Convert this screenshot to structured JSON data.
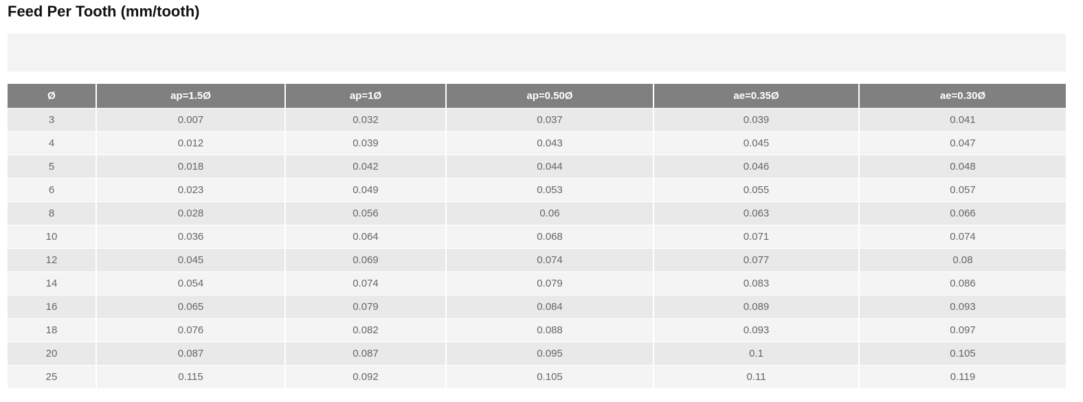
{
  "title": "Feed Per Tooth (mm/tooth)",
  "table": {
    "headers": [
      "Ø",
      "ap=1.5Ø",
      "ap=1Ø",
      "ap=0.50Ø",
      "ae=0.35Ø",
      "ae=0.30Ø"
    ],
    "rows": [
      [
        "3",
        "0.007",
        "0.032",
        "0.037",
        "0.039",
        "0.041"
      ],
      [
        "4",
        "0.012",
        "0.039",
        "0.043",
        "0.045",
        "0.047"
      ],
      [
        "5",
        "0.018",
        "0.042",
        "0.044",
        "0.046",
        "0.048"
      ],
      [
        "6",
        "0.023",
        "0.049",
        "0.053",
        "0.055",
        "0.057"
      ],
      [
        "8",
        "0.028",
        "0.056",
        "0.06",
        "0.063",
        "0.066"
      ],
      [
        "10",
        "0.036",
        "0.064",
        "0.068",
        "0.071",
        "0.074"
      ],
      [
        "12",
        "0.045",
        "0.069",
        "0.074",
        "0.077",
        "0.08"
      ],
      [
        "14",
        "0.054",
        "0.074",
        "0.079",
        "0.083",
        "0.086"
      ],
      [
        "16",
        "0.065",
        "0.079",
        "0.084",
        "0.089",
        "0.093"
      ],
      [
        "18",
        "0.076",
        "0.082",
        "0.088",
        "0.093",
        "0.097"
      ],
      [
        "20",
        "0.087",
        "0.087",
        "0.095",
        "0.1",
        "0.105"
      ],
      [
        "25",
        "0.115",
        "0.092",
        "0.105",
        "0.11",
        "0.119"
      ]
    ]
  },
  "colors": {
    "header_bg": "#808080",
    "row_odd": "#e9e9e9",
    "row_even": "#f4f4f4"
  }
}
